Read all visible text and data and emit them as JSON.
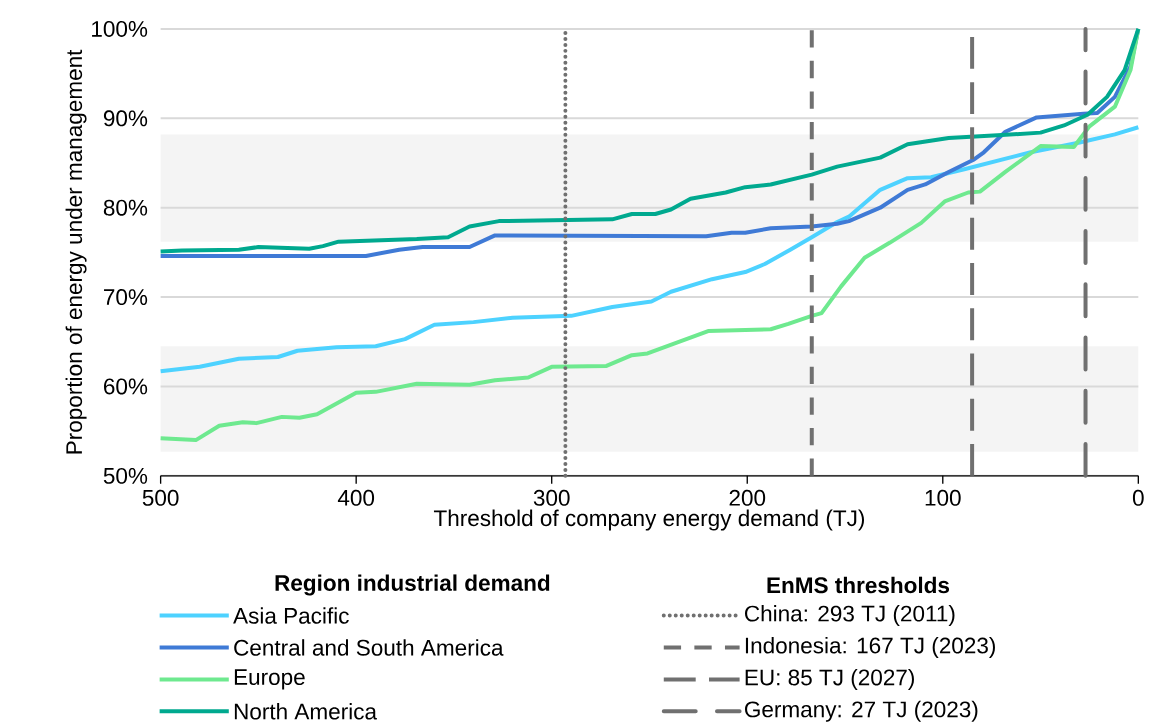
{
  "chart_data": {
    "type": "line",
    "xlabel": "Threshold of company energy demand (TJ)",
    "ylabel": "Proportion of energy under management",
    "legend_title": "Region industrial demand",
    "annotations": [
      "EnMS thresholds"
    ],
    "xlim": [
      500,
      0
    ],
    "xticks": [
      500,
      400,
      300,
      200,
      100,
      0
    ],
    "ylim": [
      50,
      100
    ],
    "yticks": [
      {
        "value": 50,
        "label": "50%"
      },
      {
        "value": 60,
        "label": "60%"
      },
      {
        "value": 70,
        "label": "70%"
      },
      {
        "value": 80,
        "label": "80%"
      },
      {
        "value": 90,
        "label": "90%"
      },
      {
        "value": 100,
        "label": "100%"
      }
    ],
    "grid": "y",
    "legend": "bottom",
    "marker": "none",
    "line_style": "solid",
    "series": [
      {
        "name": "Asia Pacific",
        "color": "#4dd2ff",
        "x": [
          500,
          480,
          460,
          440,
          430,
          410,
          390,
          375,
          360,
          340,
          320,
          290,
          269,
          249,
          239,
          218,
          201,
          191,
          178,
          167,
          154,
          148,
          132,
          118,
          106,
          89,
          55,
          30,
          12,
          0
        ],
        "values": [
          61.7,
          62.2,
          63.1,
          63.3,
          64.0,
          64.4,
          64.5,
          65.3,
          66.9,
          67.2,
          67.7,
          67.9,
          68.9,
          69.5,
          70.6,
          72.0,
          72.8,
          73.7,
          75.3,
          76.7,
          78.4,
          79.0,
          82.0,
          83.3,
          83.4,
          84.3,
          86.2,
          87.3,
          88.2,
          89.0
        ]
      },
      {
        "name": "Central and South America",
        "color": "#3f7ad6",
        "x": [
          500,
          395,
          378,
          366,
          342,
          329,
          221,
          208,
          201,
          188,
          167,
          154,
          148,
          132,
          118,
          109,
          97,
          84,
          79,
          68,
          52,
          28,
          21,
          12,
          4,
          0
        ],
        "values": [
          74.6,
          74.6,
          75.3,
          75.6,
          75.6,
          76.9,
          76.8,
          77.2,
          77.2,
          77.7,
          77.9,
          78.2,
          78.5,
          80.0,
          82.0,
          82.6,
          84.0,
          85.4,
          86.2,
          88.5,
          90.1,
          90.5,
          90.6,
          92.4,
          95.8,
          100
        ]
      },
      {
        "name": "Europe",
        "color": "#6ee98f",
        "x": [
          500,
          482,
          470,
          458,
          451,
          438,
          429,
          420,
          400,
          390,
          369,
          342,
          329,
          312,
          300,
          272,
          259,
          251,
          220,
          188,
          179,
          167,
          162,
          152,
          140,
          127,
          111,
          99,
          87,
          81,
          68,
          50,
          33,
          25,
          12,
          4,
          0
        ],
        "values": [
          54.2,
          54.0,
          55.6,
          56.0,
          55.9,
          56.6,
          56.5,
          56.9,
          59.3,
          59.4,
          60.3,
          60.2,
          60.7,
          61.0,
          62.2,
          62.3,
          63.5,
          63.7,
          66.2,
          66.4,
          67.0,
          67.9,
          68.2,
          71.2,
          74.4,
          76.1,
          78.3,
          80.7,
          81.7,
          81.8,
          84.0,
          86.9,
          86.8,
          89.1,
          91.3,
          95.4,
          100
        ]
      },
      {
        "name": "North America",
        "color": "#00a98f",
        "x": [
          500,
          489,
          460,
          450,
          424,
          417,
          409,
          369,
          353,
          342,
          327,
          269,
          259,
          247,
          239,
          229,
          211,
          201,
          188,
          167,
          154,
          132,
          118,
          97,
          72,
          50,
          38,
          26,
          16,
          7,
          0
        ],
        "values": [
          75.1,
          75.2,
          75.3,
          75.6,
          75.4,
          75.7,
          76.2,
          76.5,
          76.7,
          77.9,
          78.5,
          78.7,
          79.3,
          79.3,
          79.8,
          81.0,
          81.7,
          82.3,
          82.6,
          83.7,
          84.6,
          85.6,
          87.1,
          87.8,
          88.1,
          88.4,
          89.2,
          90.4,
          92.4,
          95.4,
          100
        ]
      }
    ],
    "ref_lines": [
      {
        "axis": "x",
        "value": 293,
        "label": "China: 293 TJ (2011)",
        "color": "#707070",
        "line_style": "dotted"
      },
      {
        "axis": "x",
        "value": 167,
        "label": "Indonesia: 167 TJ (2023)",
        "color": "#707070",
        "line_style": "dashed"
      },
      {
        "axis": "x",
        "value": 85,
        "label": "EU: 85 TJ (2027)",
        "color": "#707070",
        "line_style": "long dashed"
      },
      {
        "axis": "x",
        "value": 27,
        "label": "Germany: 27 TJ (2023)",
        "color": "#707070",
        "line_style": "dash dot"
      }
    ],
    "bands": [
      {
        "axis": "y",
        "from": 76.2,
        "to": 88.2,
        "color": "#f4f4f4"
      },
      {
        "axis": "y",
        "from": 52.7,
        "to": 64.5,
        "color": "#f4f4f4"
      }
    ]
  }
}
